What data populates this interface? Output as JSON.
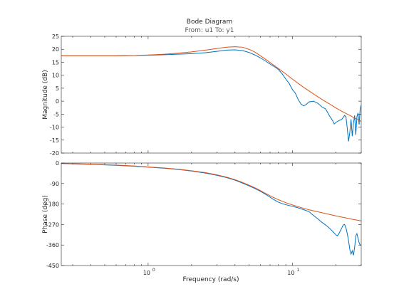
{
  "chart_data": {
    "type": "line",
    "title": "Bode Diagram",
    "subtitle": "From: u1  To: y1",
    "xlabel": "Frequency  (rad/s)",
    "xscale": "log",
    "xlim": [
      0.25,
      30
    ],
    "x_tick_labels": [
      {
        "value": 1,
        "label": "10",
        "exp": "0"
      },
      {
        "value": 10,
        "label": "10",
        "exp": "1"
      }
    ],
    "grid": false,
    "legend": "none",
    "colors": {
      "measured": "#0072BD",
      "model": "#D95319",
      "axes": "#262626"
    },
    "panels": [
      {
        "name": "magnitude",
        "ylabel": "Magnitude (dB)",
        "ylim": [
          -20,
          25
        ],
        "yticks": [
          -20,
          -15,
          -10,
          -5,
          0,
          5,
          10,
          15,
          20,
          25
        ],
        "series": [
          {
            "key": "measured",
            "points": [
              [
                0.25,
                17.5
              ],
              [
                0.4,
                17.5
              ],
              [
                0.6,
                17.5
              ],
              [
                0.8,
                17.6
              ],
              [
                1.0,
                17.7
              ],
              [
                1.3,
                17.9
              ],
              [
                1.6,
                18.1
              ],
              [
                2.0,
                18.3
              ],
              [
                2.5,
                18.7
              ],
              [
                3.0,
                19.2
              ],
              [
                3.5,
                19.7
              ],
              [
                4.0,
                19.8
              ],
              [
                4.5,
                19.5
              ],
              [
                5.0,
                18.8
              ],
              [
                5.5,
                17.8
              ],
              [
                6.0,
                16.7
              ],
              [
                6.5,
                15.5
              ],
              [
                7.0,
                14.3
              ],
              [
                7.5,
                13.3
              ],
              [
                8.0,
                12.2
              ],
              [
                8.5,
                10.5
              ],
              [
                9.0,
                8.5
              ],
              [
                9.5,
                6.8
              ],
              [
                10.0,
                4.5
              ],
              [
                10.5,
                3.0
              ],
              [
                11.0,
                0.5
              ],
              [
                11.5,
                -1.2
              ],
              [
                12.0,
                -1.8
              ],
              [
                12.5,
                -1.2
              ],
              [
                13.0,
                -0.3
              ],
              [
                14.0,
                0.0
              ],
              [
                15.0,
                -0.8
              ],
              [
                16.0,
                -2.2
              ],
              [
                17.0,
                -3.0
              ],
              [
                18.0,
                -5.5
              ],
              [
                19.0,
                -7.5
              ],
              [
                19.5,
                -8.8
              ],
              [
                20.0,
                -8.2
              ],
              [
                21.0,
                -7.5
              ],
              [
                22.0,
                -7.0
              ],
              [
                23.0,
                -5.5
              ],
              [
                23.5,
                -6.0
              ],
              [
                24.0,
                -10.5
              ],
              [
                24.5,
                -15.5
              ],
              [
                25.0,
                -12.0
              ],
              [
                25.5,
                -7.0
              ],
              [
                26.0,
                -13.5
              ],
              [
                26.5,
                -8.5
              ],
              [
                27.0,
                -5.5
              ],
              [
                27.5,
                -13.0
              ],
              [
                28.0,
                -6.0
              ],
              [
                28.5,
                -4.5
              ],
              [
                29.0,
                -9.0
              ],
              [
                29.5,
                -3.0
              ],
              [
                30.0,
                -1.5
              ]
            ]
          },
          {
            "key": "model",
            "points": [
              [
                0.25,
                17.5
              ],
              [
                0.4,
                17.5
              ],
              [
                0.6,
                17.5
              ],
              [
                0.8,
                17.6
              ],
              [
                1.0,
                17.8
              ],
              [
                1.3,
                18.1
              ],
              [
                1.6,
                18.5
              ],
              [
                2.0,
                19.0
              ],
              [
                2.5,
                19.7
              ],
              [
                3.0,
                20.3
              ],
              [
                3.5,
                20.8
              ],
              [
                4.0,
                21.0
              ],
              [
                4.5,
                20.8
              ],
              [
                5.0,
                20.0
              ],
              [
                5.5,
                18.9
              ],
              [
                6.0,
                17.5
              ],
              [
                6.5,
                16.2
              ],
              [
                7.0,
                14.9
              ],
              [
                7.5,
                13.7
              ],
              [
                8.0,
                12.6
              ],
              [
                9.0,
                10.5
              ],
              [
                10.0,
                8.5
              ],
              [
                11.0,
                6.8
              ],
              [
                12.0,
                5.3
              ],
              [
                13.0,
                4.0
              ],
              [
                14.0,
                2.8
              ],
              [
                15.0,
                1.7
              ],
              [
                16.0,
                0.7
              ],
              [
                18.0,
                -1.0
              ],
              [
                20.0,
                -2.6
              ],
              [
                22.0,
                -3.9
              ],
              [
                25.0,
                -5.5
              ],
              [
                30.0,
                -7.8
              ]
            ]
          }
        ]
      },
      {
        "name": "phase",
        "ylabel": "Phase (deg)",
        "ylim": [
          -450,
          0
        ],
        "yticks": [
          0,
          -90,
          -180,
          -270,
          -360,
          -450
        ],
        "series": [
          {
            "key": "measured",
            "points": [
              [
                0.25,
                -2
              ],
              [
                0.4,
                -6
              ],
              [
                0.6,
                -10
              ],
              [
                0.8,
                -14
              ],
              [
                1.0,
                -18
              ],
              [
                1.3,
                -23
              ],
              [
                1.6,
                -28
              ],
              [
                2.0,
                -35
              ],
              [
                2.5,
                -44
              ],
              [
                3.0,
                -54
              ],
              [
                3.5,
                -64
              ],
              [
                4.0,
                -75
              ],
              [
                4.5,
                -88
              ],
              [
                5.0,
                -100
              ],
              [
                5.5,
                -112
              ],
              [
                6.0,
                -124
              ],
              [
                6.5,
                -137
              ],
              [
                7.0,
                -150
              ],
              [
                7.5,
                -162
              ],
              [
                8.0,
                -172
              ],
              [
                8.5,
                -178
              ],
              [
                9.0,
                -183
              ],
              [
                10.0,
                -190
              ],
              [
                11.0,
                -197
              ],
              [
                12.0,
                -205
              ],
              [
                13.0,
                -213
              ],
              [
                14.0,
                -230
              ],
              [
                15.0,
                -245
              ],
              [
                16.0,
                -260
              ],
              [
                17.0,
                -272
              ],
              [
                18.0,
                -285
              ],
              [
                19.0,
                -300
              ],
              [
                20.0,
                -315
              ],
              [
                20.5,
                -320
              ],
              [
                21.0,
                -310
              ],
              [
                22.0,
                -285
              ],
              [
                22.5,
                -272
              ],
              [
                23.0,
                -270
              ],
              [
                23.5,
                -285
              ],
              [
                24.0,
                -310
              ],
              [
                24.5,
                -340
              ],
              [
                25.0,
                -380
              ],
              [
                25.5,
                -400
              ],
              [
                26.0,
                -385
              ],
              [
                26.5,
                -405
              ],
              [
                27.0,
                -370
              ],
              [
                27.5,
                -320
              ],
              [
                28.0,
                -310
              ],
              [
                28.5,
                -330
              ],
              [
                29.0,
                -350
              ],
              [
                29.5,
                -360
              ],
              [
                30.0,
                -360
              ]
            ]
          },
          {
            "key": "model",
            "points": [
              [
                0.25,
                -2
              ],
              [
                0.4,
                -5
              ],
              [
                0.6,
                -9
              ],
              [
                0.8,
                -13
              ],
              [
                1.0,
                -17
              ],
              [
                1.3,
                -22
              ],
              [
                1.6,
                -27
              ],
              [
                2.0,
                -34
              ],
              [
                2.5,
                -42
              ],
              [
                3.0,
                -52
              ],
              [
                3.5,
                -62
              ],
              [
                4.0,
                -73
              ],
              [
                4.5,
                -85
              ],
              [
                5.0,
                -97
              ],
              [
                5.5,
                -109
              ],
              [
                6.0,
                -121
              ],
              [
                6.5,
                -133
              ],
              [
                7.0,
                -144
              ],
              [
                7.5,
                -153
              ],
              [
                8.0,
                -161
              ],
              [
                9.0,
                -174
              ],
              [
                10.0,
                -184
              ],
              [
                11.0,
                -192
              ],
              [
                12.0,
                -199
              ],
              [
                13.0,
                -205
              ],
              [
                15.0,
                -214
              ],
              [
                17.0,
                -222
              ],
              [
                20.0,
                -232
              ],
              [
                23.0,
                -240
              ],
              [
                26.0,
                -247
              ],
              [
                30.0,
                -254
              ]
            ]
          }
        ]
      }
    ]
  }
}
